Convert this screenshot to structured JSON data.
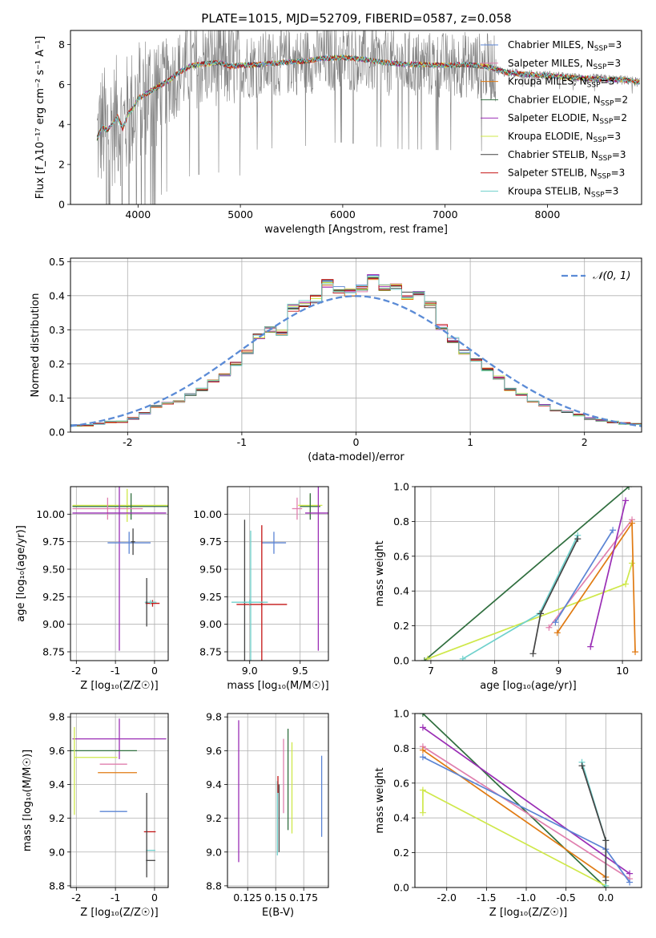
{
  "title": "PLATE=1015, MJD=52709, FIBERID=0587, z=0.058",
  "colors": {
    "Chabrier MILES": "#5b84d4",
    "Salpeter MILES": "#e07fae",
    "Kroupa MILES": "#e07a12",
    "Chabrier ELODIE": "#2f6e3e",
    "Salpeter ELODIE": "#9a2eb5",
    "Kroupa ELODIE": "#cfe84a",
    "Chabrier STELIB": "#444444",
    "Salpeter STELIB": "#c41414",
    "Kroupa STELIB": "#6fd1cc",
    "data": "#808080",
    "gauss": "#5b8bd6"
  },
  "chart_data": [
    {
      "id": "spectrum",
      "type": "line",
      "xlabel": "wavelength [Angstrom, rest frame]",
      "ylabel": "Flux [f_λ10⁻¹⁷ erg cm⁻² s⁻¹ A⁻¹]",
      "xlim": [
        3340,
        8920
      ],
      "ylim": [
        0,
        8.7
      ],
      "xticks": [
        4000,
        5000,
        6000,
        7000,
        8000
      ],
      "yticks": [
        0,
        2,
        4,
        6,
        8
      ],
      "data_range": [
        3600,
        8900
      ],
      "model_points": {
        "x": [
          3600,
          3650,
          3700,
          3750,
          3800,
          3850,
          3900,
          3950,
          4000,
          4100,
          4200,
          4300,
          4400,
          4500,
          4600,
          4700,
          4800,
          4900,
          5000,
          5200,
          5400,
          5600,
          5800,
          6000,
          6200,
          6400,
          6600,
          6800,
          7000,
          7200,
          7400,
          7600,
          7800,
          8000,
          8200,
          8400,
          8600,
          8800,
          8900
        ],
        "y": [
          3.3,
          3.9,
          3.7,
          4.0,
          4.4,
          3.8,
          4.5,
          4.8,
          5.3,
          5.6,
          5.9,
          6.2,
          6.6,
          6.9,
          7.0,
          7.05,
          7.1,
          6.9,
          6.95,
          7.0,
          7.1,
          7.15,
          7.3,
          7.35,
          7.25,
          7.1,
          7.0,
          7.0,
          6.95,
          7.0,
          6.9,
          6.6,
          6.5,
          6.45,
          6.35,
          6.3,
          6.25,
          6.2,
          6.1
        ]
      },
      "legend": [
        "Chabrier MILES, N_SSP=3",
        "Salpeter MILES, N_SSP=3",
        "Kroupa MILES, N_SSP=3",
        "Chabrier ELODIE, N_SSP=2",
        "Salpeter ELODIE, N_SSP=2",
        "Kroupa ELODIE, N_SSP=3",
        "Chabrier STELIB, N_SSP=3",
        "Salpeter STELIB, N_SSP=3",
        "Kroupa STELIB, N_SSP=3"
      ],
      "legend_main": [
        "Chabrier MILES, N",
        "Salpeter MILES, N",
        "Kroupa MILES, N",
        "Chabrier ELODIE, N",
        "Salpeter ELODIE, N",
        "Kroupa ELODIE, N",
        "Chabrier STELIB, N",
        "Salpeter STELIB, N",
        "Kroupa STELIB, N"
      ],
      "legend_sub": "SSP",
      "legend_eq": [
        "=3",
        "=3",
        "=3",
        "=2",
        "=2",
        "=3",
        "=3",
        "=3",
        "=3"
      ],
      "legend_keys": [
        "Chabrier MILES",
        "Salpeter MILES",
        "Kroupa MILES",
        "Chabrier ELODIE",
        "Salpeter ELODIE",
        "Kroupa ELODIE",
        "Chabrier STELIB",
        "Salpeter STELIB",
        "Kroupa STELIB"
      ],
      "legend_position": "right"
    },
    {
      "id": "residuals",
      "type": "bar",
      "xlabel": "(data-model)/error",
      "ylabel": "Normed distribution",
      "xlim": [
        -2.5,
        2.5
      ],
      "ylim": [
        0,
        0.51
      ],
      "xticks": [
        -2,
        -1,
        0,
        1,
        2
      ],
      "yticks": [
        0.0,
        0.1,
        0.2,
        0.3,
        0.4,
        0.5
      ],
      "bin_edges_start": -2.5,
      "bin_width": 0.1,
      "hist": [
        0.02,
        0.02,
        0.025,
        0.03,
        0.03,
        0.04,
        0.055,
        0.075,
        0.085,
        0.09,
        0.11,
        0.125,
        0.15,
        0.17,
        0.2,
        0.235,
        0.28,
        0.3,
        0.29,
        0.365,
        0.375,
        0.39,
        0.435,
        0.42,
        0.41,
        0.42,
        0.45,
        0.42,
        0.43,
        0.4,
        0.405,
        0.375,
        0.31,
        0.27,
        0.235,
        0.21,
        0.185,
        0.16,
        0.125,
        0.11,
        0.09,
        0.08,
        0.065,
        0.06,
        0.05,
        0.04,
        0.035,
        0.03,
        0.025,
        0.025
      ],
      "legend": "𝒩(0, 1)",
      "grid": true
    },
    {
      "id": "age-vs-Z",
      "type": "scatter",
      "xlabel": "Z [log₁₀(Z/Z☉)]",
      "ylabel": "age  [log₁₀(age/yr)]",
      "xlim": [
        -2.15,
        0.35
      ],
      "ylim": [
        8.67,
        10.25
      ],
      "xticks": [
        -2,
        -1,
        0
      ],
      "yticks": [
        8.75,
        9.0,
        9.25,
        9.5,
        9.75,
        10.0
      ],
      "errorbars": [
        {
          "series": "Kroupa ELODIE",
          "x": -0.7,
          "xerr": 1.4,
          "y": 10.08,
          "yerr": 0.15
        },
        {
          "series": "Chabrier ELODIE",
          "x": -0.6,
          "xerr": 1.5,
          "y": 10.07,
          "yerr": 0.12
        },
        {
          "series": "Salpeter MILES",
          "x": -1.2,
          "xerr": 0.9,
          "y": 10.05,
          "yerr": 0.1
        },
        {
          "series": "Salpeter ELODIE",
          "x": -0.9,
          "xerr": 1.2,
          "y": 10.01,
          "yerr": 1.25
        },
        {
          "series": "Chabrier MILES",
          "x": -0.65,
          "xerr": 0.55,
          "y": 9.74,
          "yerr": 0.1
        },
        {
          "series": "Chabrier STELIB",
          "x": -0.55,
          "xerr": 0.05,
          "y": 9.75,
          "yerr": 0.12
        },
        {
          "series": "Salpeter STELIB",
          "x": -0.05,
          "xerr": 0.18,
          "y": 9.19,
          "yerr": 0.03
        },
        {
          "series": "Kroupa STELIB",
          "x": -0.1,
          "xerr": 0.15,
          "y": 9.2,
          "yerr": 0.02
        },
        {
          "series": "Chabrier STELIB",
          "x": -0.2,
          "xerr": 0.02,
          "y": 9.2,
          "yerr": 0.22
        }
      ]
    },
    {
      "id": "age-vs-mass",
      "type": "scatter",
      "xlabel": "mass [log₁₀(M/M☉)]",
      "ylabel": "",
      "xlim": [
        8.78,
        9.78
      ],
      "ylim": [
        8.67,
        10.25
      ],
      "xticks": [
        9.0,
        9.5
      ],
      "yticks": [
        8.75,
        9.0,
        9.25,
        9.5,
        9.75,
        10.0
      ],
      "errorbars": [
        {
          "series": "Kroupa ELODIE",
          "x": 9.6,
          "xerr": 0.12,
          "y": 10.08,
          "yerr": 0.1
        },
        {
          "series": "Chabrier ELODIE",
          "x": 9.6,
          "xerr": 0.1,
          "y": 10.07,
          "yerr": 0.12
        },
        {
          "series": "Salpeter MILES",
          "x": 9.47,
          "xerr": 0.05,
          "y": 10.05,
          "yerr": 0.1
        },
        {
          "series": "Salpeter ELODIE",
          "x": 9.68,
          "xerr": 0.13,
          "y": 10.01,
          "yerr": 1.25
        },
        {
          "series": "Chabrier MILES",
          "x": 9.24,
          "xerr": 0.12,
          "y": 9.74,
          "yerr": 0.1
        },
        {
          "series": "Kroupa STELIB",
          "x": 9.01,
          "xerr": 0.02,
          "y": 9.2,
          "yerr": 0.65
        },
        {
          "series": "Chabrier STELIB",
          "x": 8.95,
          "xerr": 0.02,
          "y": 9.2,
          "yerr": 0.75
        },
        {
          "series": "Salpeter STELIB",
          "x": 9.12,
          "xerr": 0.02,
          "y": 9.2,
          "yerr": 0.7
        },
        {
          "series": "Salpeter STELIB",
          "x": 9.12,
          "xerr": 0.25,
          "y": 9.18,
          "yerr": 0.02
        },
        {
          "series": "Kroupa STELIB",
          "x": 9.0,
          "xerr": 0.18,
          "y": 9.2,
          "yerr": 0.02
        }
      ]
    },
    {
      "id": "mass-weight-vs-age",
      "type": "line",
      "xlabel": "age  [log₁₀(age/yr)]",
      "ylabel": "mass weight",
      "xlim": [
        6.75,
        10.3
      ],
      "ylim": [
        0,
        1
      ],
      "xticks": [
        7,
        8,
        9,
        10
      ],
      "yticks": [
        0.0,
        0.2,
        0.4,
        0.6,
        0.8,
        1.0
      ],
      "series": [
        {
          "name": "Chabrier ELODIE",
          "x": [
            6.9,
            10.1
          ],
          "y": [
            0.0,
            1.0
          ]
        },
        {
          "name": "Kroupa ELODIE",
          "x": [
            6.95,
            10.05,
            10.15
          ],
          "y": [
            0.01,
            0.44,
            0.56
          ]
        },
        {
          "name": "Salpeter MILES",
          "x": [
            8.85,
            10.15
          ],
          "y": [
            0.19,
            0.81
          ]
        },
        {
          "name": "Kroupa MILES",
          "x": [
            8.98,
            10.15,
            10.2
          ],
          "y": [
            0.16,
            0.79,
            0.05
          ]
        },
        {
          "name": "Chabrier MILES",
          "x": [
            8.95,
            9.85
          ],
          "y": [
            0.22,
            0.75
          ]
        },
        {
          "name": "Salpeter ELODIE",
          "x": [
            9.5,
            10.05
          ],
          "y": [
            0.08,
            0.92
          ]
        },
        {
          "name": "Kroupa STELIB",
          "x": [
            7.5,
            8.7,
            9.3
          ],
          "y": [
            0.01,
            0.27,
            0.72
          ]
        },
        {
          "name": "Chabrier STELIB",
          "x": [
            8.6,
            8.72,
            9.3
          ],
          "y": [
            0.04,
            0.27,
            0.7
          ]
        }
      ]
    },
    {
      "id": "mass-vs-Z",
      "type": "scatter",
      "xlabel": "Z [log₁₀(Z/Z☉)]",
      "ylabel": "mass [log₁₀(M/M☉)]",
      "xlim": [
        -2.15,
        0.35
      ],
      "ylim": [
        8.79,
        9.82
      ],
      "xticks": [
        -2,
        -1,
        0
      ],
      "yticks": [
        8.8,
        9.0,
        9.2,
        9.4,
        9.6,
        9.8
      ],
      "errorbars": [
        {
          "series": "Salpeter ELODIE",
          "x": -0.9,
          "xerr": 1.2,
          "y": 9.67,
          "yerr": 0.12
        },
        {
          "series": "Chabrier ELODIE",
          "x": -1.3,
          "xerr": 0.85,
          "y": 9.6,
          "yerr": 0.0
        },
        {
          "series": "Kroupa ELODIE",
          "x": -1.5,
          "xerr": 0.55,
          "y": 9.56,
          "yerr": 0.0
        },
        {
          "series": "Kroupa ELODIE",
          "x": -2.05,
          "xerr": 0.0,
          "y": 9.48,
          "yerr": 0.26
        },
        {
          "series": "Salpeter MILES",
          "x": -1.05,
          "xerr": 0.35,
          "y": 9.52,
          "yerr": 0.0
        },
        {
          "series": "Kroupa MILES",
          "x": -0.95,
          "xerr": 0.5,
          "y": 9.47,
          "yerr": 0.0
        },
        {
          "series": "Chabrier MILES",
          "x": -1.05,
          "xerr": 0.35,
          "y": 9.24,
          "yerr": 0.0
        },
        {
          "series": "Salpeter STELIB",
          "x": -0.12,
          "xerr": 0.15,
          "y": 9.12,
          "yerr": 0.0
        },
        {
          "series": "Chabrier STELIB",
          "x": -0.1,
          "xerr": 0.12,
          "y": 8.95,
          "yerr": 0.0
        },
        {
          "series": "Kroupa STELIB",
          "x": -0.1,
          "xerr": 0.12,
          "y": 9.01,
          "yerr": 0.0
        },
        {
          "series": "Chabrier STELIB",
          "x": -0.2,
          "xerr": 0.0,
          "y": 9.1,
          "yerr": 0.25
        }
      ]
    },
    {
      "id": "mass-vs-EBV",
      "type": "scatter",
      "xlabel": "E(B-V)",
      "ylabel": "",
      "xlim": [
        0.107,
        0.197
      ],
      "ylim": [
        8.79,
        9.82
      ],
      "xticks": [
        0.125,
        0.15,
        0.175
      ],
      "yticks": [
        8.8,
        9.0,
        9.2,
        9.4,
        9.6,
        9.8
      ],
      "errorbars": [
        {
          "series": "Salpeter ELODIE",
          "x": 0.117,
          "xerr": 0.0,
          "y": 9.36,
          "yerr": 0.42
        },
        {
          "series": "Kroupa STELIB",
          "x": 0.1515,
          "xerr": 0.0,
          "y": 9.2,
          "yerr": 0.22
        },
        {
          "series": "Chabrier STELIB",
          "x": 0.153,
          "xerr": 0.0,
          "y": 9.2,
          "yerr": 0.2
        },
        {
          "series": "Salpeter STELIB",
          "x": 0.152,
          "xerr": 0.0,
          "y": 9.4,
          "yerr": 0.05
        },
        {
          "series": "Salpeter MILES",
          "x": 0.157,
          "xerr": 0.0,
          "y": 9.45,
          "yerr": 0.22
        },
        {
          "series": "Chabrier ELODIE",
          "x": 0.161,
          "xerr": 0.0,
          "y": 9.43,
          "yerr": 0.3
        },
        {
          "series": "Kroupa ELODIE",
          "x": 0.1645,
          "xerr": 0.0,
          "y": 9.38,
          "yerr": 0.27
        },
        {
          "series": "Chabrier MILES",
          "x": 0.191,
          "xerr": 0.0,
          "y": 9.33,
          "yerr": 0.24
        }
      ]
    },
    {
      "id": "mass-weight-vs-Z",
      "type": "line",
      "xlabel": "Z [log₁₀(Z/Z☉)]",
      "ylabel": "mass weight",
      "xlim": [
        -2.4,
        0.45
      ],
      "ylim": [
        0,
        1
      ],
      "xticks": [
        -2.0,
        -1.5,
        -1.0,
        -0.5,
        0.0
      ],
      "yticks": [
        0.0,
        0.2,
        0.4,
        0.6,
        0.8,
        1.0
      ],
      "series": [
        {
          "name": "Chabrier ELODIE",
          "x": [
            -2.3,
            0.0
          ],
          "y": [
            1.0,
            0.0
          ]
        },
        {
          "name": "Salpeter ELODIE",
          "x": [
            -2.3,
            0.3
          ],
          "y": [
            0.92,
            0.08
          ]
        },
        {
          "name": "Salpeter MILES",
          "x": [
            -2.3,
            0.3
          ],
          "y": [
            0.81,
            0.05
          ]
        },
        {
          "name": "Kroupa MILES",
          "x": [
            -2.3,
            0.0
          ],
          "y": [
            0.79,
            0.06
          ]
        },
        {
          "name": "Chabrier MILES",
          "x": [
            -2.3,
            0.0,
            0.3
          ],
          "y": [
            0.75,
            0.22,
            0.03
          ]
        },
        {
          "name": "Kroupa ELODIE",
          "x": [
            -2.3,
            -2.3,
            0.0
          ],
          "y": [
            0.43,
            0.56,
            0.01
          ]
        },
        {
          "name": "Kroupa STELIB",
          "x": [
            -0.3,
            0.0,
            0.0
          ],
          "y": [
            0.72,
            0.27,
            0.01
          ]
        },
        {
          "name": "Chabrier STELIB",
          "x": [
            -0.3,
            0.0,
            0.0
          ],
          "y": [
            0.7,
            0.27,
            0.04
          ]
        }
      ]
    }
  ]
}
